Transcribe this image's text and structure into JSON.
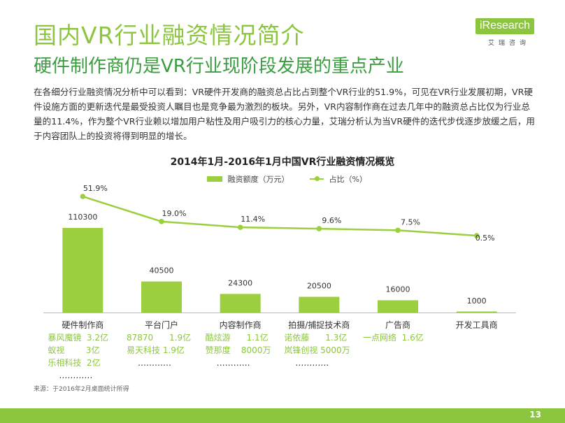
{
  "header": {
    "title": "国内VR行业融资情况简介",
    "subtitle": "硬件制作商仍是VR行业现阶段发展的重点产业",
    "logo_text": "iResearch",
    "logo_sub": "艾瑞咨询"
  },
  "paragraph": "在各细分行业融资情况分析中可以看到：VR硬件开发商的融资总占比占到整个VR行业的51.9%，可见在VR行业发展初期，VR硬件设施方面的更新迭代是最受投资人瞩目也是竞争最为激烈的板块。另外，VR内容制作商在过去几年中的融资总占比仅为行业总量的11.4%，作为整个VR行业赖以增加用户粘性及用户吸引力的核心力量，艾瑞分析认为当VR硬件的迭代步伐逐步放缓之后，用于内容团队上的投资将得到明显的增长。",
  "chart_data": {
    "type": "bar",
    "title": "2014年1月-2016年1月中国VR行业融资情况概览",
    "categories": [
      "硬件制作商",
      "平台门户",
      "内容制作商",
      "拍摄/捕捉技术商",
      "广告商",
      "开发工具商"
    ],
    "series": [
      {
        "name": "融资额度（万元）",
        "type": "bar",
        "values": [
          110300,
          40500,
          24300,
          20500,
          16000,
          1000
        ]
      },
      {
        "name": "占比（%）",
        "type": "line",
        "values": [
          51.9,
          19.0,
          11.4,
          9.6,
          7.5,
          0.5
        ],
        "labels": [
          "51.9%",
          "19.0%",
          "11.4%",
          "9.6%",
          "7.5%",
          "0.5%"
        ]
      }
    ],
    "colors": {
      "bar": "#9bcf3f",
      "line": "#9bcf3f",
      "firm_text": "#8cc63f"
    }
  },
  "companies": [
    {
      "lines": [
        "暴风魔镜  3.2亿",
        "蚁视        3亿",
        "乐相科技  2亿",
        "…………"
      ]
    },
    {
      "lines": [
        "87870      1.9亿",
        "易天科技 1.9亿",
        "…………"
      ]
    },
    {
      "lines": [
        "酷炫游      1.1亿",
        "赞那度    8000万",
        "…………"
      ]
    },
    {
      "lines": [
        "诺依藤      1.3亿",
        "岚锋创视 5000万",
        "…………"
      ]
    },
    {
      "lines": [
        "一点网络  1.6亿"
      ]
    },
    {
      "lines": []
    }
  ],
  "source": "来源：于2016年2月桌面统计所得",
  "page_number": "13"
}
